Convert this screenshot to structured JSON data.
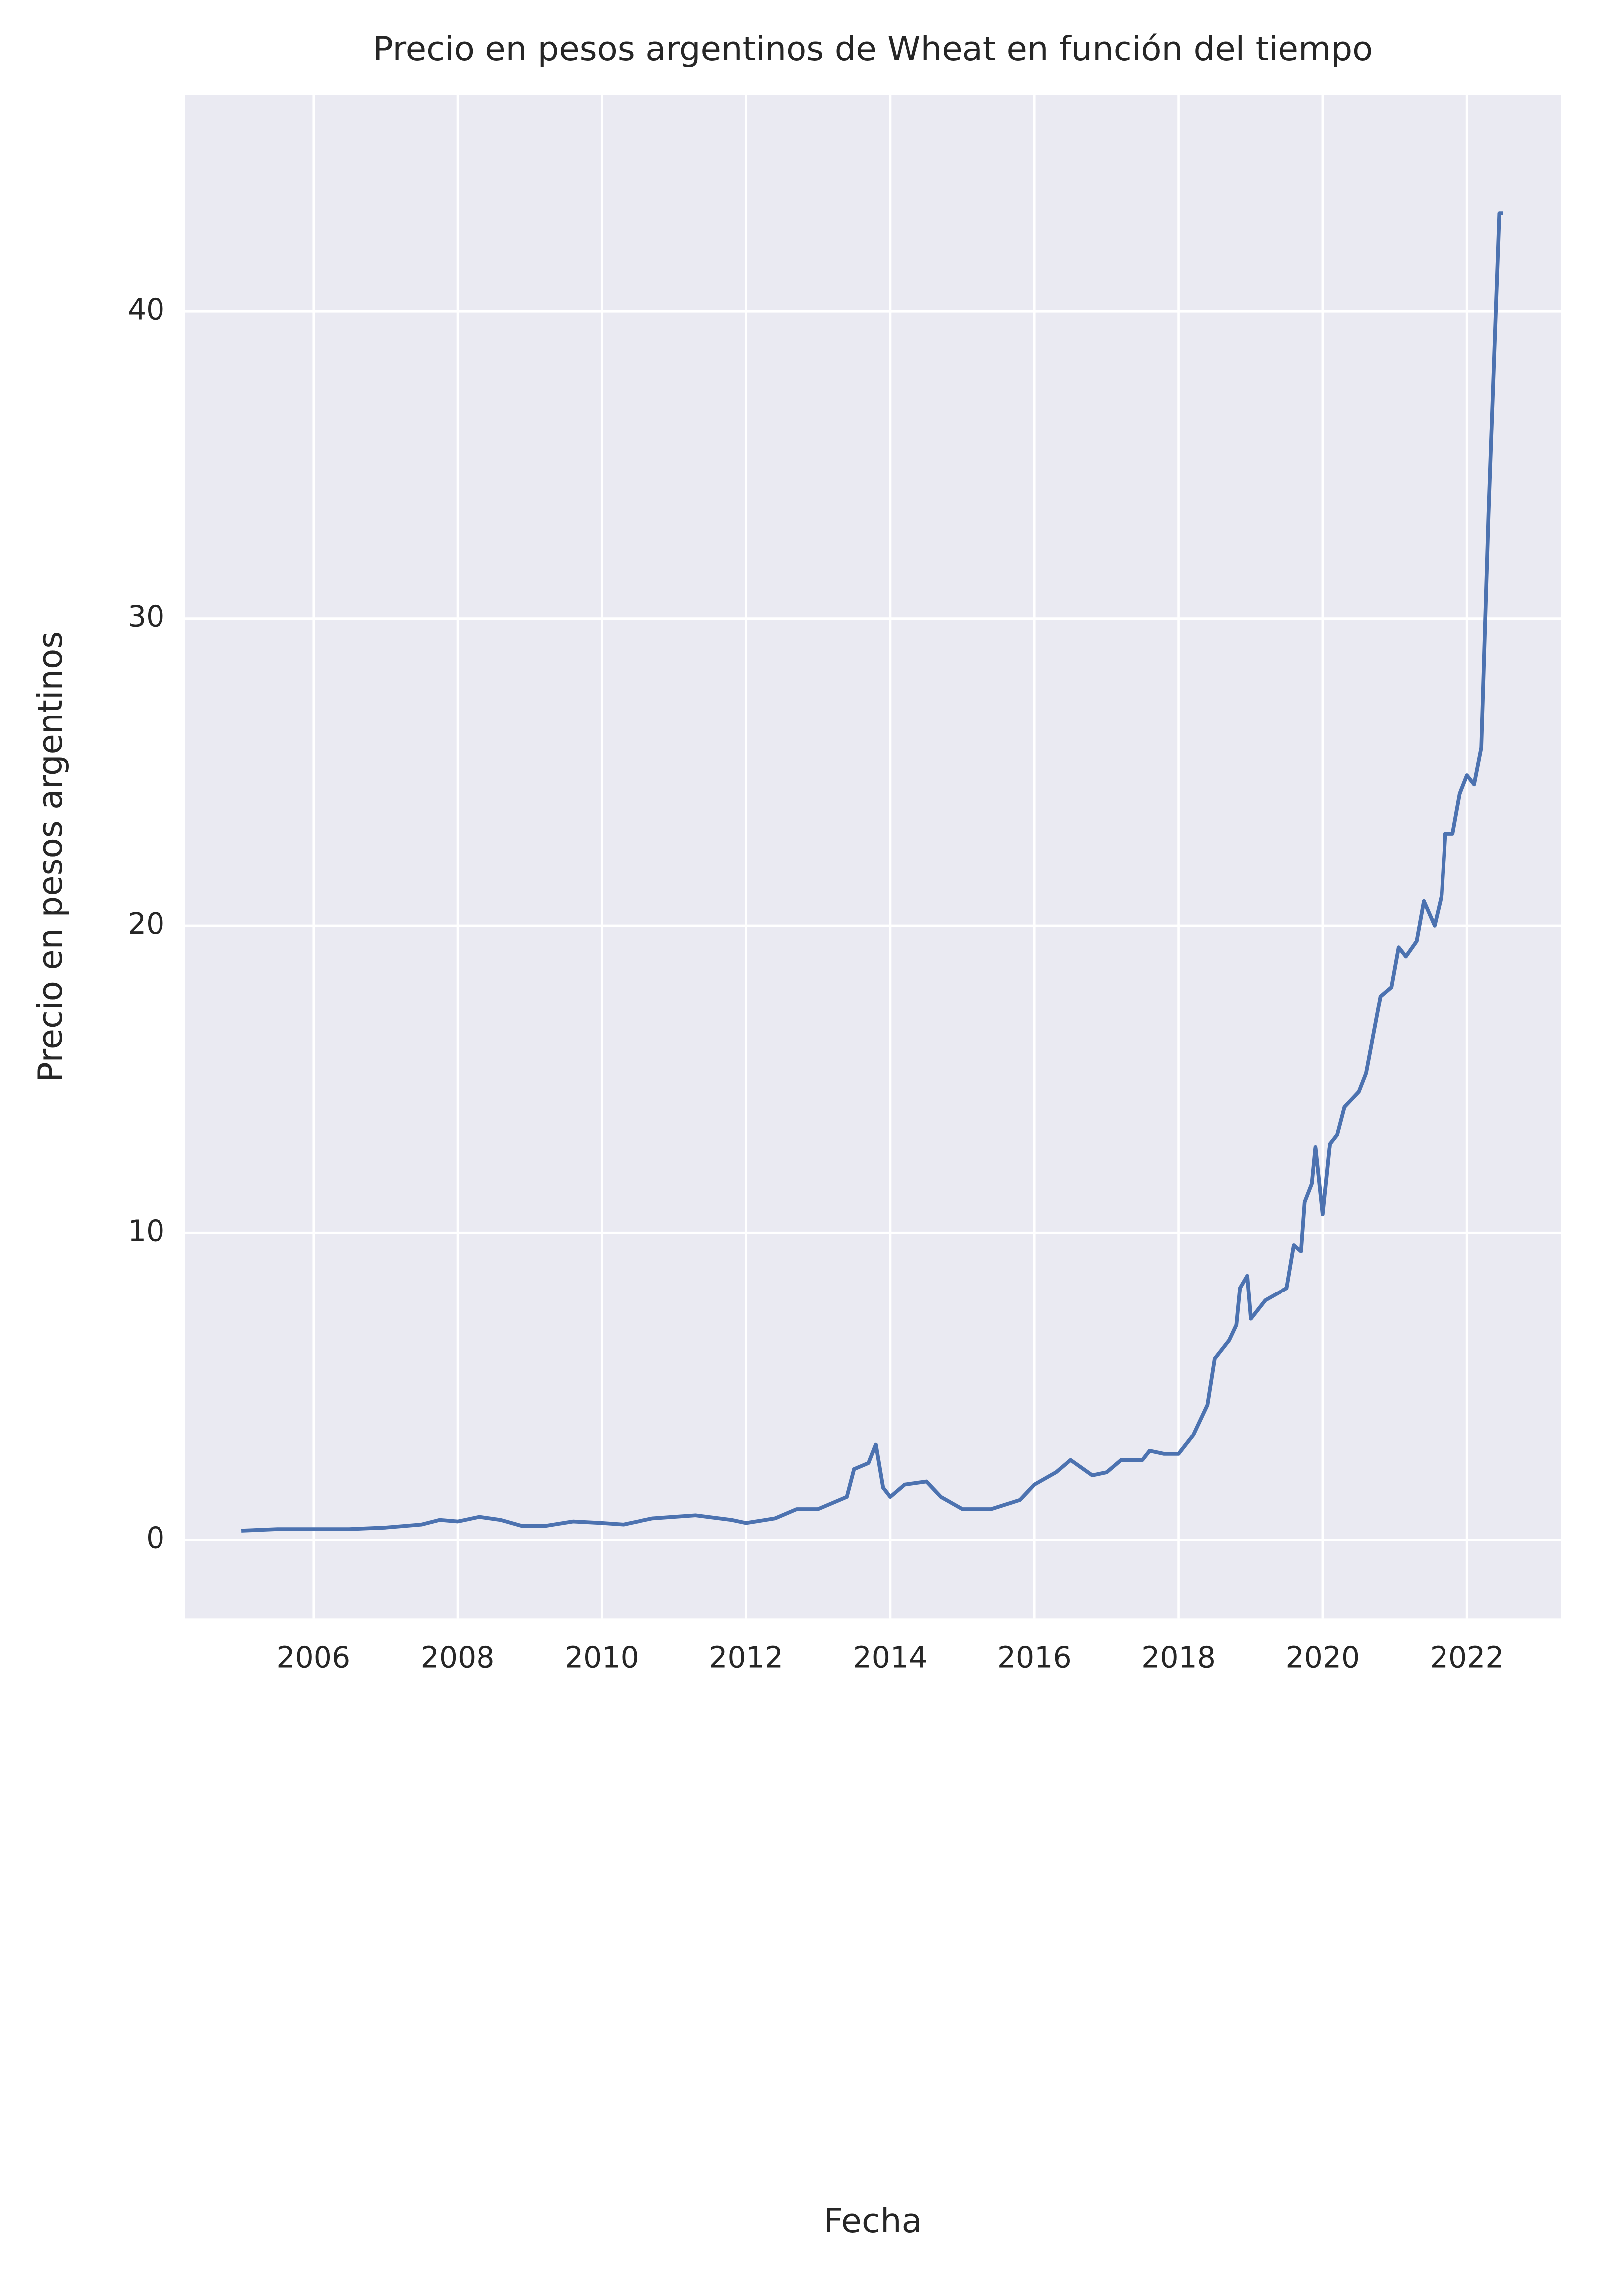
{
  "chart_data": {
    "type": "line",
    "title": "Precio en pesos argentinos de Wheat en función del tiempo",
    "x_label": "Fecha",
    "y_label": "Precio en pesos argentinos",
    "x": [
      2005.0,
      2005.5,
      2006.0,
      2006.5,
      2007.0,
      2007.5,
      2007.75,
      2008.0,
      2008.3,
      2008.6,
      2008.9,
      2009.2,
      2009.6,
      2010.0,
      2010.3,
      2010.7,
      2011.0,
      2011.3,
      2011.8,
      2012.0,
      2012.4,
      2012.7,
      2013.0,
      2013.4,
      2013.5,
      2013.7,
      2013.8,
      2013.9,
      2014.0,
      2014.2,
      2014.5,
      2014.7,
      2015.0,
      2015.2,
      2015.4,
      2015.8,
      2016.0,
      2016.3,
      2016.5,
      2016.8,
      2017.0,
      2017.2,
      2017.5,
      2017.6,
      2017.8,
      2018.0,
      2018.2,
      2018.4,
      2018.5,
      2018.7,
      2018.8,
      2018.85,
      2018.95,
      2019.0,
      2019.2,
      2019.5,
      2019.6,
      2019.7,
      2019.75,
      2019.85,
      2019.9,
      2020.0,
      2020.1,
      2020.2,
      2020.3,
      2020.5,
      2020.6,
      2020.8,
      2020.95,
      2021.05,
      2021.15,
      2021.3,
      2021.4,
      2021.55,
      2021.65,
      2021.7,
      2021.8,
      2021.9,
      2022.0,
      2022.1,
      2022.2,
      2022.3,
      2022.45,
      2022.5
    ],
    "series": [
      {
        "name": "Wheat",
        "color": "#4c72b0",
        "values": [
          0.3,
          0.35,
          0.35,
          0.35,
          0.4,
          0.5,
          0.65,
          0.6,
          0.75,
          0.65,
          0.45,
          0.45,
          0.6,
          0.55,
          0.5,
          0.7,
          0.75,
          0.8,
          0.65,
          0.55,
          0.7,
          1.0,
          1.0,
          1.4,
          2.3,
          2.5,
          3.1,
          1.7,
          1.4,
          1.8,
          1.9,
          1.4,
          1.0,
          1.0,
          1.0,
          1.3,
          1.8,
          2.2,
          2.6,
          2.1,
          2.2,
          2.6,
          2.6,
          2.9,
          2.8,
          2.8,
          3.4,
          4.4,
          5.9,
          6.5,
          7.0,
          8.2,
          8.6,
          7.2,
          7.8,
          8.2,
          9.6,
          9.4,
          11.0,
          11.6,
          12.8,
          10.6,
          12.9,
          13.2,
          14.1,
          14.6,
          15.2,
          17.7,
          18.0,
          19.3,
          19.0,
          19.5,
          20.8,
          20.0,
          21.0,
          23.0,
          23.0,
          24.3,
          24.9,
          24.6,
          25.8,
          33.4,
          43.2,
          43.2
        ]
      }
    ],
    "xlim": [
      2004.22,
      2023.3
    ],
    "ylim": [
      -2.56,
      47.06
    ],
    "xticks": [
      2006,
      2008,
      2010,
      2012,
      2014,
      2016,
      2018,
      2020,
      2022
    ],
    "yticks": [
      0,
      10,
      20,
      30,
      40
    ],
    "grid": true,
    "background": "#eaeaf2"
  }
}
